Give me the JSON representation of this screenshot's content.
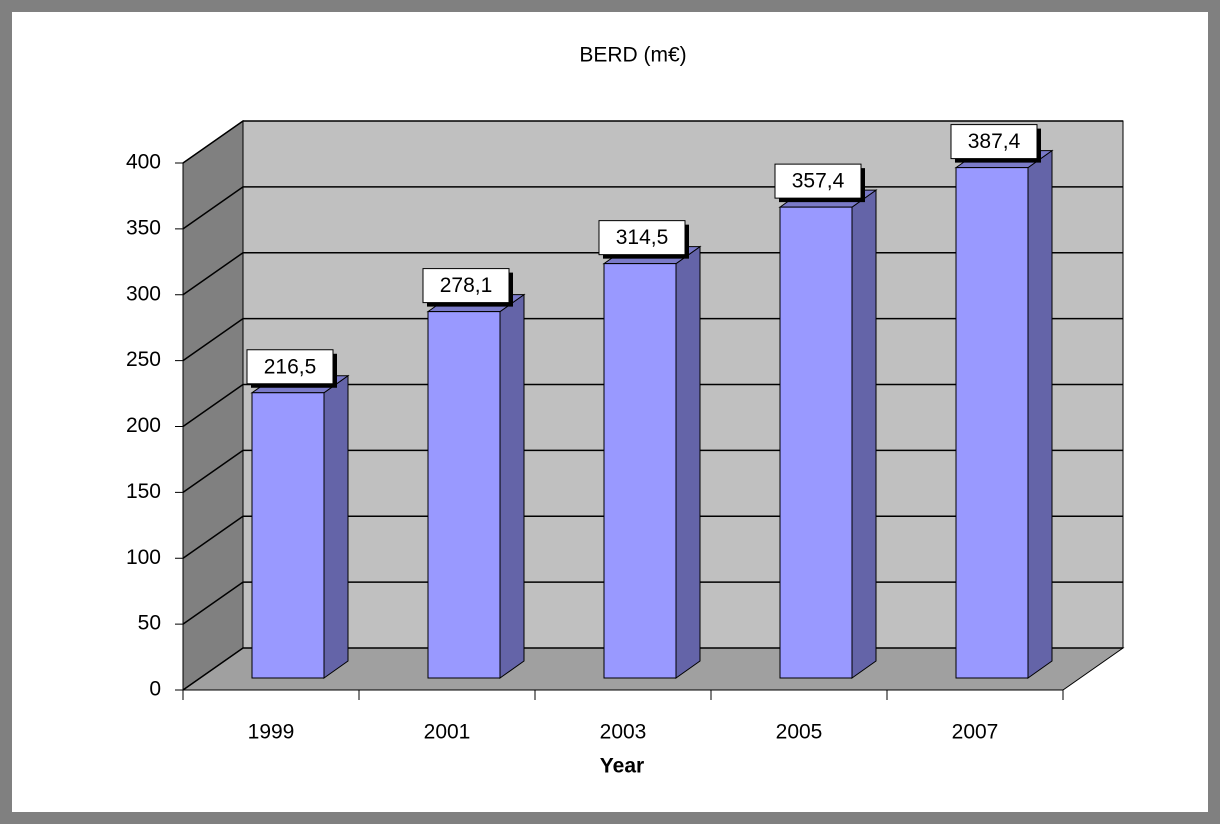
{
  "chart_data": {
    "type": "bar3d",
    "title": "BERD (m€)",
    "x_label": "Year",
    "categories": [
      "1999",
      "2001",
      "2003",
      "2005",
      "2007"
    ],
    "values": [
      216.5,
      278.1,
      314.5,
      357.4,
      387.4
    ],
    "value_labels": [
      "216,5",
      "278,1",
      "314,5",
      "357,4",
      "387,4"
    ],
    "color": "#9999ff",
    "ylim": [
      0,
      400
    ],
    "yticks": [
      0,
      50,
      100,
      150,
      200,
      250,
      300,
      350,
      400
    ],
    "grid": true
  }
}
